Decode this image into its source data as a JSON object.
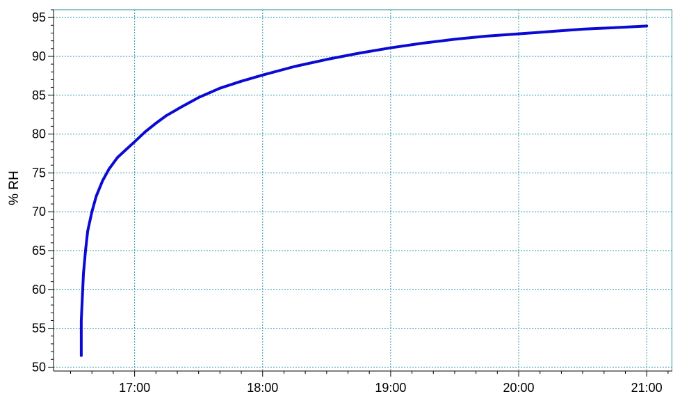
{
  "chart_data": {
    "type": "line",
    "title": "",
    "xlabel": "",
    "ylabel": "% RH",
    "x_unit": "time of day",
    "xlim": [
      "16:22",
      "21:12"
    ],
    "ylim": [
      49.5,
      96
    ],
    "x_ticks": [
      "17:00",
      "18:00",
      "19:00",
      "20:00",
      "21:00"
    ],
    "y_ticks": [
      50,
      55,
      60,
      65,
      70,
      75,
      80,
      85,
      90,
      95
    ],
    "grid": true,
    "legend": "none",
    "series": [
      {
        "x": [
          "16:35",
          "16:35",
          "16:36",
          "16:37",
          "16:38",
          "16:40",
          "16:42",
          "16:45",
          "16:48",
          "16:52",
          "16:56",
          "17:00",
          "17:05",
          "17:10",
          "17:15",
          "17:22",
          "17:30",
          "17:40",
          "17:50",
          "18:00",
          "18:15",
          "18:30",
          "18:45",
          "19:00",
          "19:15",
          "19:30",
          "19:45",
          "20:00",
          "20:15",
          "20:30",
          "20:45",
          "21:00"
        ],
        "values": [
          51.5,
          56,
          62,
          65,
          67.5,
          70,
          72,
          74,
          75.5,
          77,
          78,
          79,
          80.3,
          81.4,
          82.4,
          83.5,
          84.7,
          85.9,
          86.8,
          87.6,
          88.7,
          89.6,
          90.4,
          91.1,
          91.7,
          92.2,
          92.6,
          92.9,
          93.2,
          93.5,
          93.7,
          93.9
        ]
      }
    ],
    "colors": {
      "line": "#0a0ad2",
      "grid": "#2a9aa8",
      "frame": "#1f8f9a",
      "axis": "#000000"
    }
  }
}
